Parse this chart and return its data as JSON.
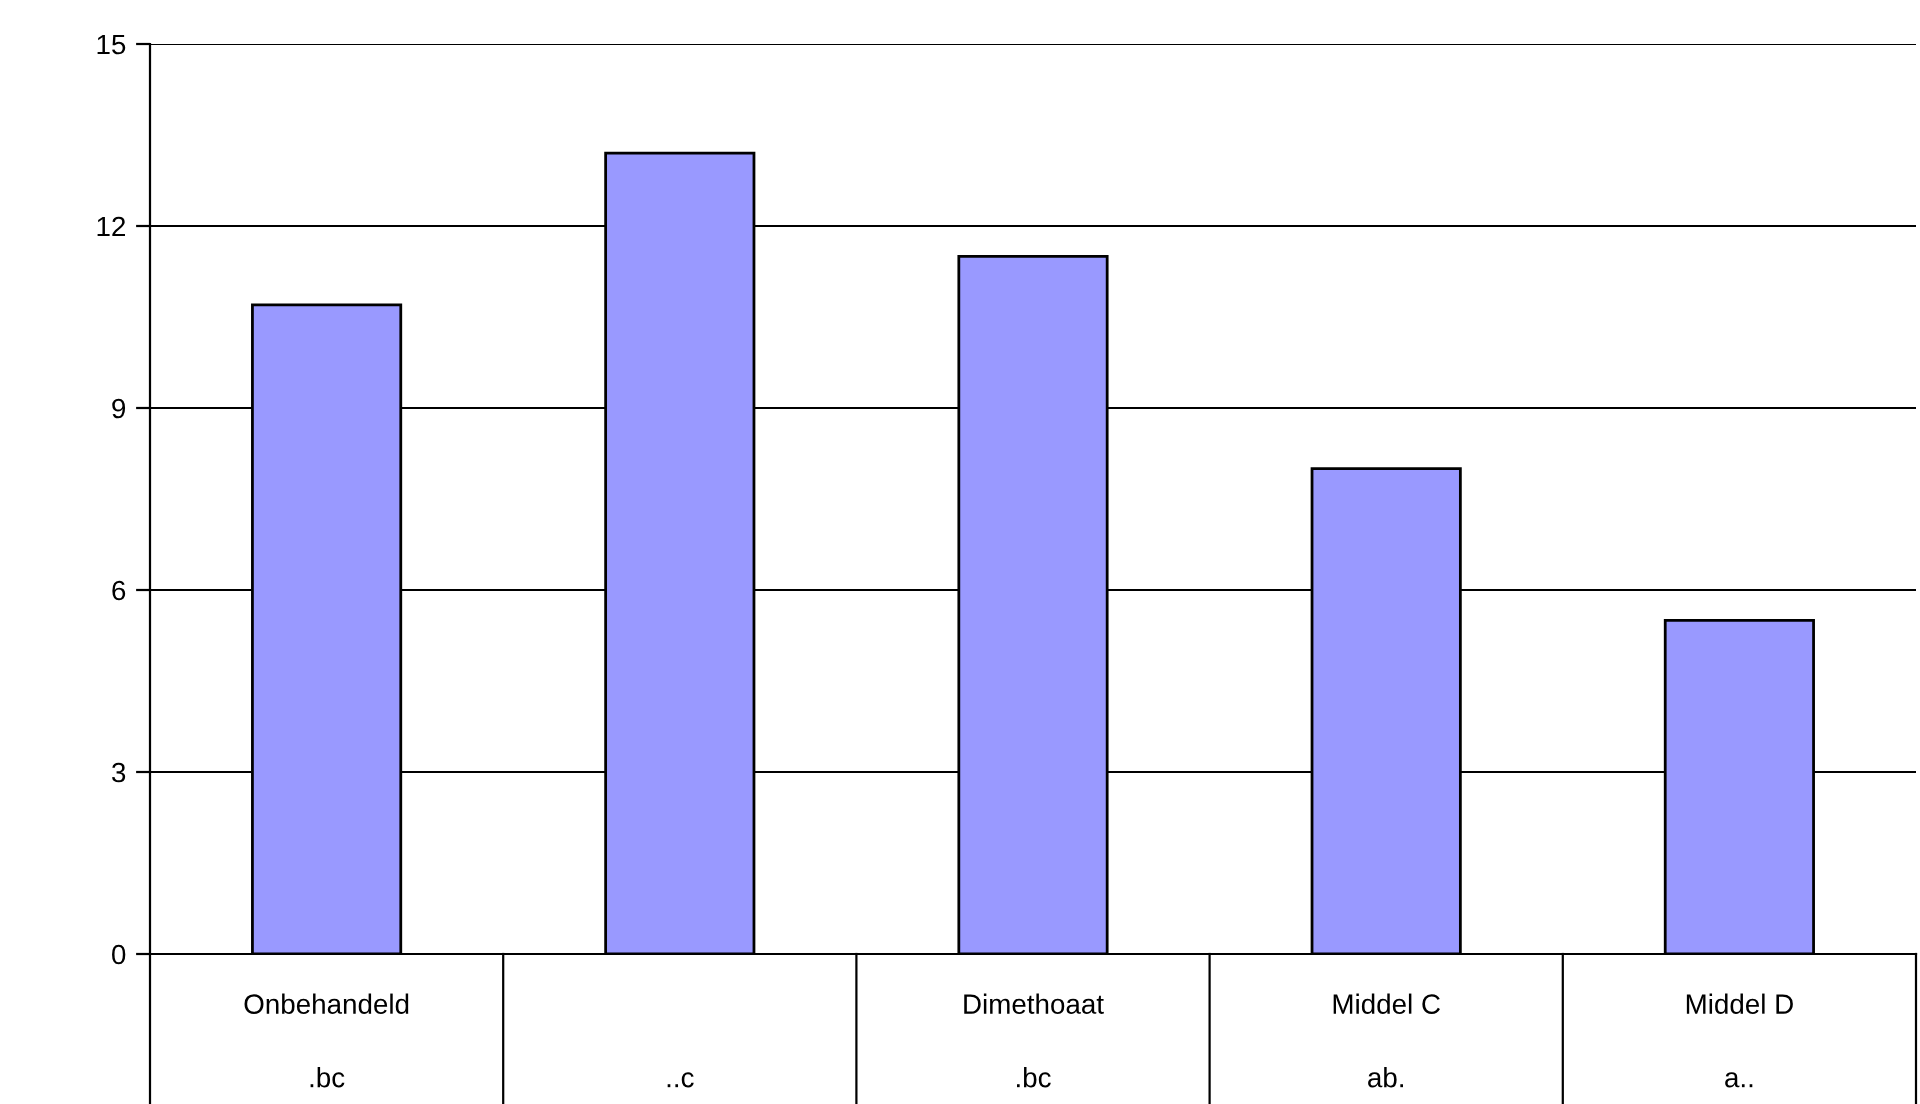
{
  "chart_data": {
    "type": "bar",
    "categories": [
      "Onbehandeld",
      null,
      "Dimethoaat",
      "Middel C",
      "Middel D"
    ],
    "values": [
      10.7,
      13.2,
      11.5,
      8.0,
      5.5
    ],
    "color": "#9999ff",
    "ylim": [
      0,
      15
    ],
    "yticks": [
      0,
      3,
      6,
      9,
      12,
      15
    ],
    "grid": "y",
    "annotations": [
      ".bc",
      "..c",
      ".bc",
      "ab.",
      "a.."
    ]
  }
}
